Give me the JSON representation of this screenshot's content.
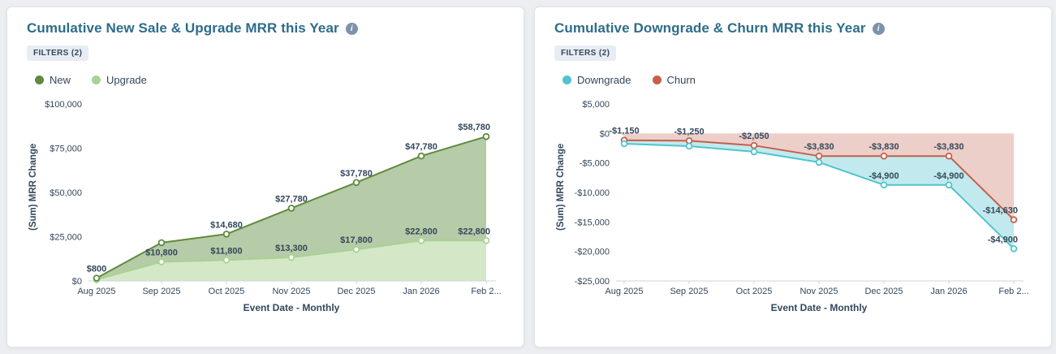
{
  "colors": {
    "page_background": "#eceef1",
    "card_background": "#ffffff",
    "title": "#2e6c8a",
    "axis_text": "#33475b",
    "axis_line": "#cbd6e2"
  },
  "charts": [
    {
      "title": "Cumulative New Sale & Upgrade MRR this Year",
      "filters_badge": "FILTERS (2)",
      "legend": [
        {
          "label": "New",
          "color": "#5e8b3c"
        },
        {
          "label": "Upgrade",
          "color": "#a9d292"
        }
      ],
      "chart_data": {
        "type": "area",
        "stacked": true,
        "x": [
          "Aug 2025",
          "Sep 2025",
          "Oct 2025",
          "Nov 2025",
          "Dec 2025",
          "Jan 2026",
          "Feb 2..."
        ],
        "xlabel": "Event Date - Monthly",
        "ylabel": "(Sum) MRR Change",
        "ylim": [
          0,
          100000
        ],
        "y_ticks": [
          {
            "value": 0,
            "label": "$0"
          },
          {
            "value": 25000,
            "label": "$25,000"
          },
          {
            "value": 50000,
            "label": "$50,000"
          },
          {
            "value": 75000,
            "label": "$75,000"
          },
          {
            "value": 100000,
            "label": "$100,000"
          }
        ],
        "series": [
          {
            "name": "Upgrade",
            "color": "#a9d292",
            "fill": "rgba(169,210,146,0.5)",
            "values": [
              800,
              10800,
              11800,
              13300,
              17800,
              22800,
              22800
            ],
            "labels": [
              null,
              "$10,800",
              "$11,800",
              "$13,300",
              "$17,800",
              "$22,800",
              "$22,800"
            ]
          },
          {
            "name": "New",
            "color": "#5e8b3c",
            "fill": "rgba(94,139,60,0.45)",
            "values": [
              800,
              10800,
              14680,
              27780,
              37780,
              47780,
              58780
            ],
            "labels": [
              "$800",
              null,
              "$14,680",
              "$27,780",
              "$37,780",
              "$47,780",
              "$58,780"
            ]
          }
        ]
      }
    },
    {
      "title": "Cumulative Downgrade & Churn MRR this Year",
      "filters_badge": "FILTERS (2)",
      "legend": [
        {
          "label": "Downgrade",
          "color": "#4fc4ce"
        },
        {
          "label": "Churn",
          "color": "#c4604b"
        }
      ],
      "chart_data": {
        "type": "area",
        "stacked": true,
        "x": [
          "Aug 2025",
          "Sep 2025",
          "Oct 2025",
          "Nov 2025",
          "Dec 2025",
          "Jan 2026",
          "Feb 2..."
        ],
        "xlabel": "Event Date - Monthly",
        "ylabel": "(Sum) MRR Change",
        "ylim": [
          -25000,
          5000
        ],
        "y_ticks": [
          {
            "value": 5000,
            "label": "$5,000"
          },
          {
            "value": 0,
            "label": "$0"
          },
          {
            "value": -5000,
            "label": "-$5,000"
          },
          {
            "value": -10000,
            "label": "-$10,000"
          },
          {
            "value": -15000,
            "label": "-$15,000"
          },
          {
            "value": -20000,
            "label": "-$20,000"
          },
          {
            "value": -25000,
            "label": "-$25,000"
          }
        ],
        "series": [
          {
            "name": "Churn",
            "color": "#c4604b",
            "fill": "rgba(196,96,75,0.3)",
            "values": [
              -1150,
              -1250,
              -2050,
              -3830,
              -3830,
              -3830,
              -14630
            ],
            "labels": [
              "-$1,150",
              "-$1,250",
              "-$2,050",
              "-$3,830",
              "-$3,830",
              "-$3,830",
              "-$14,630"
            ]
          },
          {
            "name": "Downgrade",
            "color": "#4fc4ce",
            "fill": "rgba(79,196,206,0.35)",
            "values": [
              -600,
              -900,
              -1050,
              -1070,
              -4900,
              -4900,
              -4900
            ],
            "labels": [
              null,
              null,
              null,
              null,
              "-$4,900",
              "-$4,900",
              "-$4,900"
            ]
          }
        ]
      }
    }
  ]
}
